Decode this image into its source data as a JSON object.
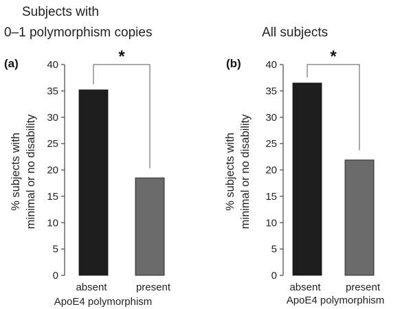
{
  "panels": {
    "a": {
      "title_line1": "Subjects with",
      "title_line2": "0–1 polymorphism copies",
      "panel_label": "(a)",
      "significance": "*"
    },
    "b": {
      "title_line1": "All subjects",
      "panel_label": "(b)",
      "significance": "*"
    }
  },
  "colors": {
    "absent": "#1e1e1e",
    "present": "#6b6b6b",
    "axis": "#444444"
  },
  "chart_data": [
    {
      "type": "bar",
      "categories": [
        "absent",
        "present"
      ],
      "values": [
        35.2,
        18.5
      ],
      "title": "Subjects with 0–1 polymorphism copies",
      "xlabel": "ApoE4 polymorphism",
      "ylabel_line1": "% subjects with",
      "ylabel_line2": "minimal or no disability",
      "ylim": [
        0,
        40
      ],
      "yticks": [
        0,
        5,
        10,
        15,
        20,
        25,
        30,
        35,
        40
      ]
    },
    {
      "type": "bar",
      "categories": [
        "absent",
        "present"
      ],
      "values": [
        36.5,
        21.9
      ],
      "title": "All subjects",
      "xlabel": "ApoE4 polymorphism",
      "ylabel_line1": "% subjects with",
      "ylabel_line2": "minimal or no disability",
      "ylim": [
        0,
        40
      ],
      "yticks": [
        0,
        5,
        10,
        15,
        20,
        25,
        30,
        35,
        40
      ]
    }
  ]
}
